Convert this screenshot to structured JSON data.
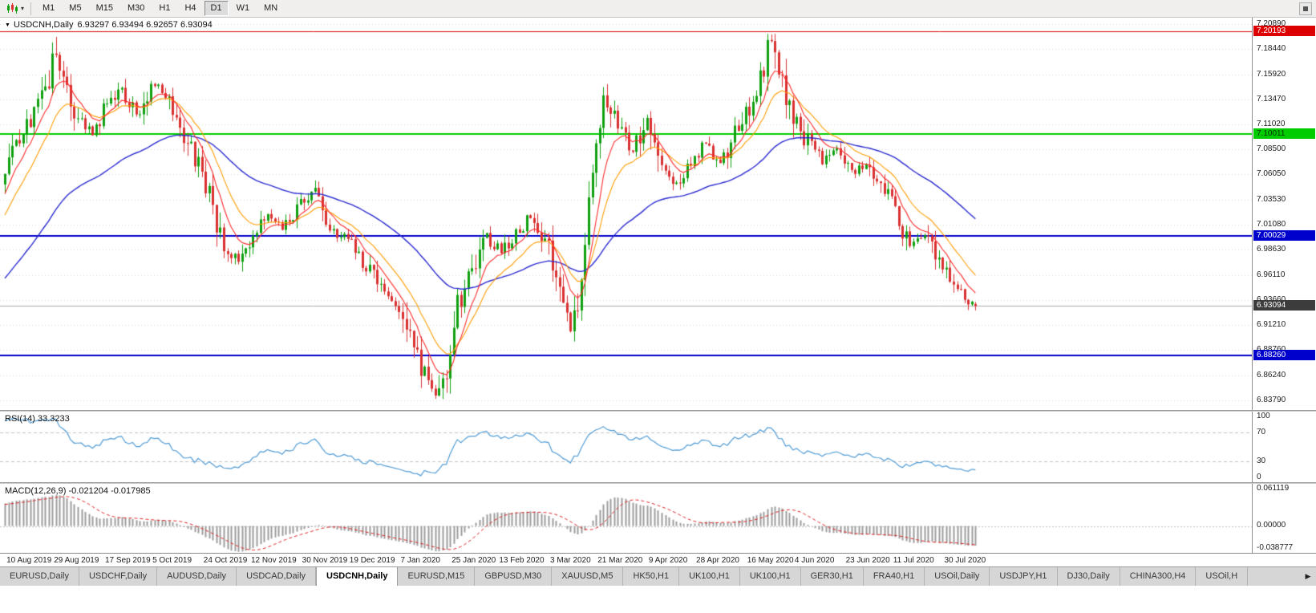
{
  "toolbar": {
    "timeframes": [
      {
        "label": "M1",
        "active": false
      },
      {
        "label": "M5",
        "active": false
      },
      {
        "label": "M15",
        "active": false
      },
      {
        "label": "M30",
        "active": false
      },
      {
        "label": "H1",
        "active": false
      },
      {
        "label": "H4",
        "active": false
      },
      {
        "label": "D1",
        "active": true
      },
      {
        "label": "W1",
        "active": false
      },
      {
        "label": "MN",
        "active": false
      }
    ]
  },
  "chart": {
    "symbol_title": "USDCNH,Daily",
    "ohlc_text": "6.93297 6.93494 6.92657 6.93094",
    "price_scale": [
      "7.20890",
      "7.18440",
      "7.15920",
      "7.13470",
      "7.11020",
      "7.08500",
      "7.06050",
      "7.03530",
      "7.01080",
      "6.98630",
      "6.96110",
      "6.93660",
      "6.91210",
      "6.88760",
      "6.86240",
      "6.83790"
    ],
    "price_range": {
      "top": 7.215,
      "bottom": 6.8285
    },
    "hlines": [
      {
        "price": 7.20193,
        "label": "7.20193",
        "line_color": "#dd0000",
        "box_color": "#dd0000",
        "text_color": "#ffffff",
        "thickness": 1
      },
      {
        "price": 7.10011,
        "label": "7.10011",
        "line_color": "#00cc00",
        "box_color": "#00cc00",
        "text_color": "#002b00",
        "thickness": 2
      },
      {
        "price": 7.00029,
        "label": "7.00029",
        "line_color": "#0000cc",
        "box_color": "#0000cc",
        "text_color": "#ffffff",
        "thickness": 2
      },
      {
        "price": 6.8826,
        "label": "6.88260",
        "line_color": "#0000cc",
        "box_color": "#0000cc",
        "text_color": "#ffffff",
        "thickness": 2
      }
    ],
    "current_price": {
      "price": 6.93094,
      "label": "6.93094",
      "box_color": "#3c3c3c",
      "text_color": "#ffffff",
      "line_color": "#a8a8a8"
    },
    "date_labels": [
      "10 Aug 2019",
      "29 Aug 2019",
      "17 Sep 2019",
      "5 Oct 2019",
      "24 Oct 2019",
      "12 Nov 2019",
      "30 Nov 2019",
      "19 Dec 2019",
      "7 Jan 2020",
      "25 Jan 2020",
      "13 Feb 2020",
      "3 Mar 2020",
      "21 Mar 2020",
      "9 Apr 2020",
      "28 Apr 2020",
      "16 May 2020",
      "4 Jun 2020",
      "23 Jun 2020",
      "11 Jul 2020",
      "30 Jul 2020"
    ]
  },
  "rsi": {
    "label": "RSI(14)",
    "value": "33.3233",
    "scale": [
      "100",
      "70",
      "30",
      "0"
    ],
    "scale_values": [
      100,
      70,
      30,
      0
    ],
    "levels": [
      70,
      30
    ],
    "line_color": "#4f9bd5"
  },
  "macd": {
    "label": "MACD(12,26,9)",
    "values": "-0.021204 -0.017985",
    "scale_top": "0.061119",
    "scale_mid": "0.00000",
    "scale_bottom": "-0.038777",
    "range": [
      -0.038777,
      0.061119
    ],
    "histogram_color": "#9c9c9c",
    "signal_color": "#dd2222"
  },
  "chart_data": {
    "type": "candlestick",
    "symbol": "USDCNH",
    "timeframe": "Daily",
    "candle_count": 267,
    "date_label_indices": [
      2,
      15,
      29,
      42,
      56,
      69,
      83,
      96,
      110,
      124,
      137,
      151,
      164,
      178,
      191,
      205,
      218,
      232,
      245,
      259
    ],
    "anchors": [
      [
        -40,
        6.882
      ],
      [
        -30,
        6.905
      ],
      [
        -20,
        6.94
      ],
      [
        -12,
        7.0
      ],
      [
        -6,
        7.03
      ],
      [
        0,
        7.06
      ],
      [
        4,
        7.095
      ],
      [
        9,
        7.125
      ],
      [
        14,
        7.18
      ],
      [
        16,
        7.165
      ],
      [
        20,
        7.115
      ],
      [
        24,
        7.1
      ],
      [
        28,
        7.13
      ],
      [
        32,
        7.145
      ],
      [
        36,
        7.12
      ],
      [
        40,
        7.15
      ],
      [
        44,
        7.14
      ],
      [
        48,
        7.105
      ],
      [
        52,
        7.075
      ],
      [
        56,
        7.04
      ],
      [
        60,
        6.99
      ],
      [
        64,
        6.972
      ],
      [
        68,
        7.0
      ],
      [
        72,
        7.02
      ],
      [
        76,
        7.008
      ],
      [
        80,
        7.025
      ],
      [
        84,
        7.045
      ],
      [
        88,
        7.012
      ],
      [
        92,
        7.0
      ],
      [
        96,
        6.99
      ],
      [
        100,
        6.965
      ],
      [
        104,
        6.945
      ],
      [
        108,
        6.93
      ],
      [
        112,
        6.885
      ],
      [
        116,
        6.852
      ],
      [
        118,
        6.845
      ],
      [
        121,
        6.872
      ],
      [
        124,
        6.928
      ],
      [
        128,
        6.965
      ],
      [
        132,
        7.0
      ],
      [
        136,
        6.982
      ],
      [
        140,
        7.0
      ],
      [
        144,
        7.018
      ],
      [
        148,
        6.992
      ],
      [
        152,
        6.955
      ],
      [
        155,
        6.905
      ],
      [
        158,
        6.955
      ],
      [
        161,
        7.075
      ],
      [
        164,
        7.14
      ],
      [
        168,
        7.105
      ],
      [
        172,
        7.082
      ],
      [
        176,
        7.115
      ],
      [
        180,
        7.065
      ],
      [
        184,
        7.052
      ],
      [
        188,
        7.072
      ],
      [
        192,
        7.09
      ],
      [
        196,
        7.072
      ],
      [
        200,
        7.1
      ],
      [
        204,
        7.13
      ],
      [
        208,
        7.168
      ],
      [
        210,
        7.19
      ],
      [
        213,
        7.152
      ],
      [
        216,
        7.12
      ],
      [
        220,
        7.092
      ],
      [
        224,
        7.072
      ],
      [
        228,
        7.085
      ],
      [
        232,
        7.062
      ],
      [
        236,
        7.072
      ],
      [
        240,
        7.052
      ],
      [
        244,
        7.022
      ],
      [
        248,
        6.992
      ],
      [
        252,
        7.002
      ],
      [
        256,
        6.972
      ],
      [
        260,
        6.95
      ],
      [
        263,
        6.94
      ],
      [
        266,
        6.931
      ]
    ],
    "last_candle": {
      "open": 6.93297,
      "high": 6.93494,
      "low": 6.92657,
      "close": 6.93094
    },
    "extremes": {
      "high_may": {
        "index": 210,
        "price": 7.1985
      },
      "high_sep": {
        "index": 14,
        "price": 7.196
      },
      "low_jan": {
        "index": 118,
        "price": 6.8395
      }
    },
    "up_color": "#0fa00f",
    "down_color": "#da3030",
    "ma_fast_color": "#ff2a2a",
    "ma_mid_color": "#ff9c00",
    "ma_slow_color": "#2a2ad0"
  },
  "tabs": {
    "items": [
      {
        "label": "EURUSD,Daily",
        "active": false
      },
      {
        "label": "USDCHF,Daily",
        "active": false
      },
      {
        "label": "AUDUSD,Daily",
        "active": false
      },
      {
        "label": "USDCAD,Daily",
        "active": false
      },
      {
        "label": "USDCNH,Daily",
        "active": true
      },
      {
        "label": "EURUSD,M15",
        "active": false
      },
      {
        "label": "GBPUSD,M30",
        "active": false
      },
      {
        "label": "XAUUSD,M5",
        "active": false
      },
      {
        "label": "HK50,H1",
        "active": false
      },
      {
        "label": "UK100,H1",
        "active": false
      },
      {
        "label": "UK100,H1",
        "active": false
      },
      {
        "label": "GER30,H1",
        "active": false
      },
      {
        "label": "FRA40,H1",
        "active": false
      },
      {
        "label": "USOil,Daily",
        "active": false
      },
      {
        "label": "USDJPY,H1",
        "active": false
      },
      {
        "label": "DJ30,Daily",
        "active": false
      },
      {
        "label": "CHINA300,H4",
        "active": false
      },
      {
        "label": "USOil,H",
        "active": false
      }
    ]
  }
}
